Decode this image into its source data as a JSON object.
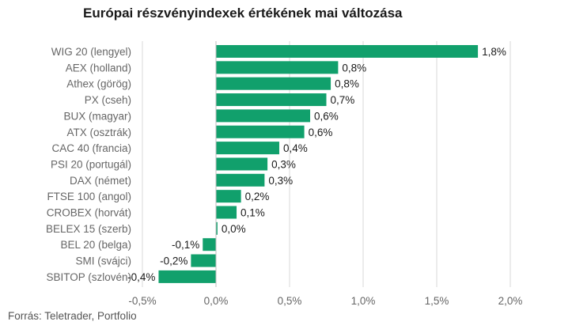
{
  "title": "Európai részvényindexek értékének mai változása",
  "source": "Forrás: Teletrader, Portfolio",
  "colors": {
    "bar": "#11a06c",
    "grid": "#d9d9d9",
    "zero_line": "#bfbfbf",
    "label": "#666666",
    "value_label": "#1a1a1a",
    "tick": "#666666"
  },
  "chart_data": {
    "type": "bar",
    "orientation": "horizontal",
    "categories": [
      "WIG 20 (lengyel)",
      "AEX (holland)",
      "Athex (görög)",
      "PX (cseh)",
      "BUX (magyar)",
      "ATX (osztrák)",
      "CAC 40 (francia)",
      "PSI 20 (portugál)",
      "DAX (német)",
      "FTSE 100 (angol)",
      "CROBEX (horvát)",
      "BELEX 15 (szerb)",
      "BEL 20 (belga)",
      "SMI (svájci)",
      "SBITOP (szlovén)"
    ],
    "values": [
      1.78,
      0.83,
      0.78,
      0.75,
      0.64,
      0.6,
      0.43,
      0.35,
      0.33,
      0.17,
      0.14,
      0.01,
      -0.09,
      -0.17,
      -0.39
    ],
    "data_labels": [
      "1,8%",
      "0,8%",
      "0,8%",
      "0,7%",
      "0,6%",
      "0,6%",
      "0,4%",
      "0,3%",
      "0,3%",
      "0,2%",
      "0,1%",
      "0,0%",
      "-0,1%",
      "-0,2%",
      "-0,4%"
    ],
    "xlim": [
      -0.5,
      2.0
    ],
    "xticks": [
      -0.5,
      0,
      0.5,
      1.0,
      1.5,
      2.0
    ],
    "xtick_labels": [
      "-0,5%",
      "0,0%",
      "0,5%",
      "1,0%",
      "1,5%",
      "2,0%"
    ],
    "grid": true,
    "legend": "none",
    "xlabel": "",
    "ylabel": ""
  }
}
